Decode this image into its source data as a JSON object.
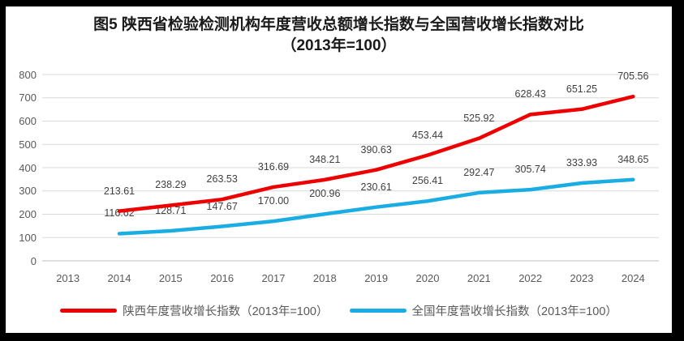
{
  "title": {
    "line1": "图5  陕西省检验检测机构年度营收总额增长指数与全国营收增长指数对比",
    "line2": "（2013年=100）"
  },
  "colors": {
    "shaanxi_line": "#ee0000",
    "national_line": "#1aade4",
    "grid": "#d9d9d9",
    "axis_line": "#bfbfbf",
    "axis_text": "#595959",
    "data_label_text": "#404040",
    "frame_border": "#000000",
    "background": "#ffffff"
  },
  "chart_data": {
    "type": "line",
    "title": "图5 陕西省检验检测机构年度营收总额增长指数与全国营收增长指数对比（2013年=100）",
    "categories": [
      "2013",
      "2014",
      "2015",
      "2016",
      "2017",
      "2018",
      "2019",
      "2020",
      "2021",
      "2022",
      "2023",
      "2024"
    ],
    "y_ticks": [
      0,
      100,
      200,
      300,
      400,
      500,
      600,
      700,
      800
    ],
    "ylim": [
      0,
      800
    ],
    "grid": true,
    "legend_position": "bottom",
    "xlabel": "",
    "ylabel": "",
    "series": [
      {
        "name": "陕西年度营收增长指数（2013年=100）",
        "color": "#ee0000",
        "values": [
          null,
          213.61,
          238.29,
          263.53,
          316.69,
          348.21,
          390.63,
          453.44,
          525.92,
          628.43,
          651.25,
          705.56
        ],
        "labels": [
          "",
          "213.61",
          "238.29",
          "263.53",
          "316.69",
          "348.21",
          "390.63",
          "453.44",
          "525.92",
          "628.43",
          "651.25",
          "705.56"
        ]
      },
      {
        "name": "全国年度营收增长指数（2013年=100）",
        "color": "#1aade4",
        "values": [
          null,
          116.62,
          128.71,
          147.67,
          170.0,
          200.96,
          230.61,
          256.41,
          292.47,
          305.74,
          333.93,
          348.65
        ],
        "labels": [
          "",
          "116.62",
          "128.71",
          "147.67",
          "170.00",
          "200.96",
          "230.61",
          "256.41",
          "292.47",
          "305.74",
          "333.93",
          "348.65"
        ]
      }
    ]
  },
  "legend": {
    "items": [
      {
        "label": "陕西年度营收增长指数（2013年=100）"
      },
      {
        "label": "全国年度营收增长指数（2013年=100）"
      }
    ]
  }
}
